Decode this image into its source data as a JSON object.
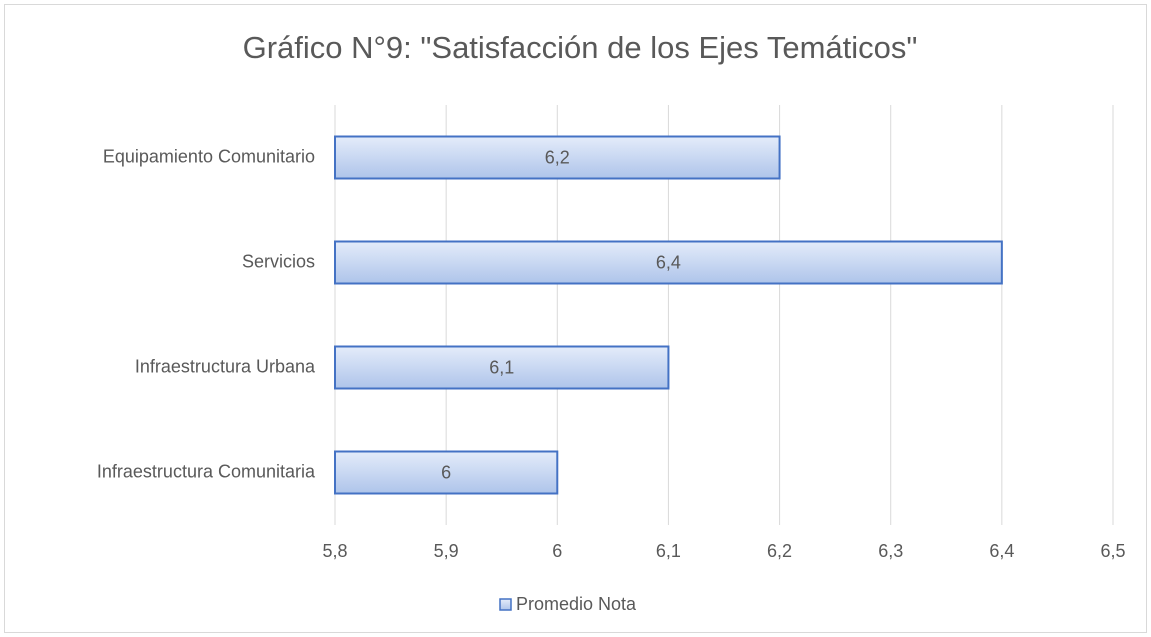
{
  "chart_data": {
    "type": "bar",
    "orientation": "horizontal",
    "title": "Gráfico N°9: \"Satisfacción de los Ejes Temáticos\"",
    "categories": [
      "Equipamiento Comunitario",
      "Servicios",
      "Infraestructura Urbana",
      "Infraestructura Comunitaria"
    ],
    "series": [
      {
        "name": "Promedio Nota",
        "color": "#4472c4",
        "values": [
          6.2,
          6.4,
          6.1,
          6
        ],
        "value_labels": [
          "6,2",
          "6,4",
          "6,1",
          "6"
        ]
      }
    ],
    "xlim": [
      5.8,
      6.5
    ],
    "xticks": [
      {
        "value": 5.8,
        "label": "5,8"
      },
      {
        "value": 5.9,
        "label": "5,9"
      },
      6,
      {
        "value": 6.1,
        "label": "6,1"
      },
      {
        "value": 6.2,
        "label": "6,2"
      },
      {
        "value": 6.3,
        "label": "6,3"
      },
      {
        "value": 6.4,
        "label": "6,4"
      },
      {
        "value": 6.5,
        "label": "6,5"
      }
    ],
    "grid": true,
    "legend": "bottom"
  }
}
